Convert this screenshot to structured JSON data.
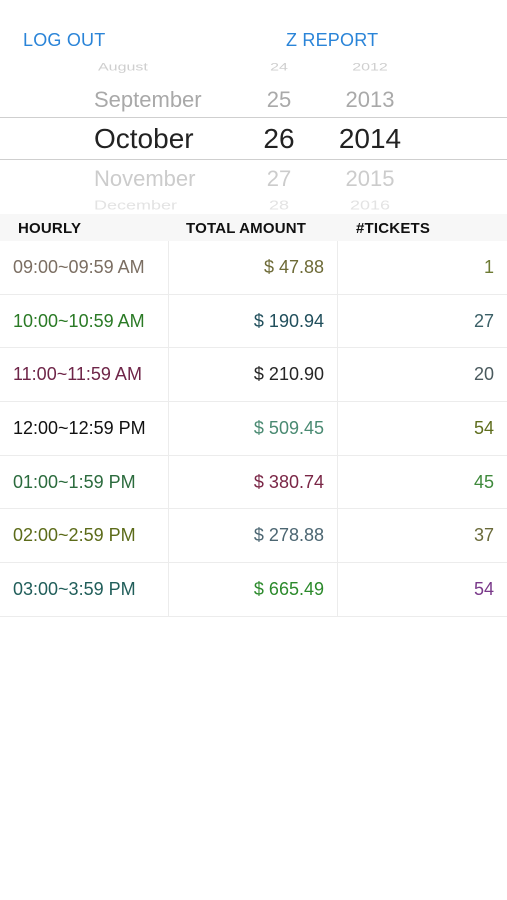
{
  "toolbar": {
    "logout_label": "LOG OUT",
    "zreport_label": "Z REPORT"
  },
  "date_picker": {
    "months": [
      "August",
      "September",
      "October",
      "November",
      "December"
    ],
    "days": [
      "24",
      "25",
      "26",
      "27",
      "28"
    ],
    "years": [
      "2012",
      "2013",
      "2014",
      "2015",
      "2016"
    ],
    "selected": {
      "month": "October",
      "day": "26",
      "year": "2014"
    }
  },
  "table": {
    "headers": {
      "hourly": "HOURLY",
      "total": "TOTAL AMOUNT",
      "tickets": "#TICKETS"
    },
    "rows": [
      {
        "hour": "09:00~09:59 AM",
        "amount": "$ 47.88",
        "tickets": "1",
        "colors": {
          "hour": "#7b6e62",
          "amount": "#6d6a36",
          "tickets": "#6d7a33"
        }
      },
      {
        "hour": "10:00~10:59 AM",
        "amount": "$ 190.94",
        "tickets": "27",
        "colors": {
          "hour": "#2a7a25",
          "amount": "#214f5c",
          "tickets": "#3a5f66"
        }
      },
      {
        "hour": "11:00~11:59 AM",
        "amount": "$ 210.90",
        "tickets": "20",
        "colors": {
          "hour": "#6e2548",
          "amount": "#262626",
          "tickets": "#4a5a5e"
        }
      },
      {
        "hour": "12:00~12:59 PM",
        "amount": "$ 509.45",
        "tickets": "54",
        "colors": {
          "hour": "#111111",
          "amount": "#4a8a72",
          "tickets": "#5f6e1e"
        }
      },
      {
        "hour": "01:00~1:59 PM",
        "amount": "$ 380.74",
        "tickets": "45",
        "colors": {
          "hour": "#2b6b3d",
          "amount": "#7a2646",
          "tickets": "#3f8a3c"
        }
      },
      {
        "hour": "02:00~2:59 PM",
        "amount": "$ 278.88",
        "tickets": "37",
        "colors": {
          "hour": "#5c6b19",
          "amount": "#4c6672",
          "tickets": "#6a6a3a"
        }
      },
      {
        "hour": "03:00~3:59 PM",
        "amount": "$ 665.49",
        "tickets": "54",
        "colors": {
          "hour": "#215e5a",
          "amount": "#2c8a2c",
          "tickets": "#7a3a8a"
        }
      }
    ]
  },
  "colors": {
    "accent": "#2a84d8",
    "header_bg": "#f7f7f7",
    "divider": "#ececec"
  }
}
